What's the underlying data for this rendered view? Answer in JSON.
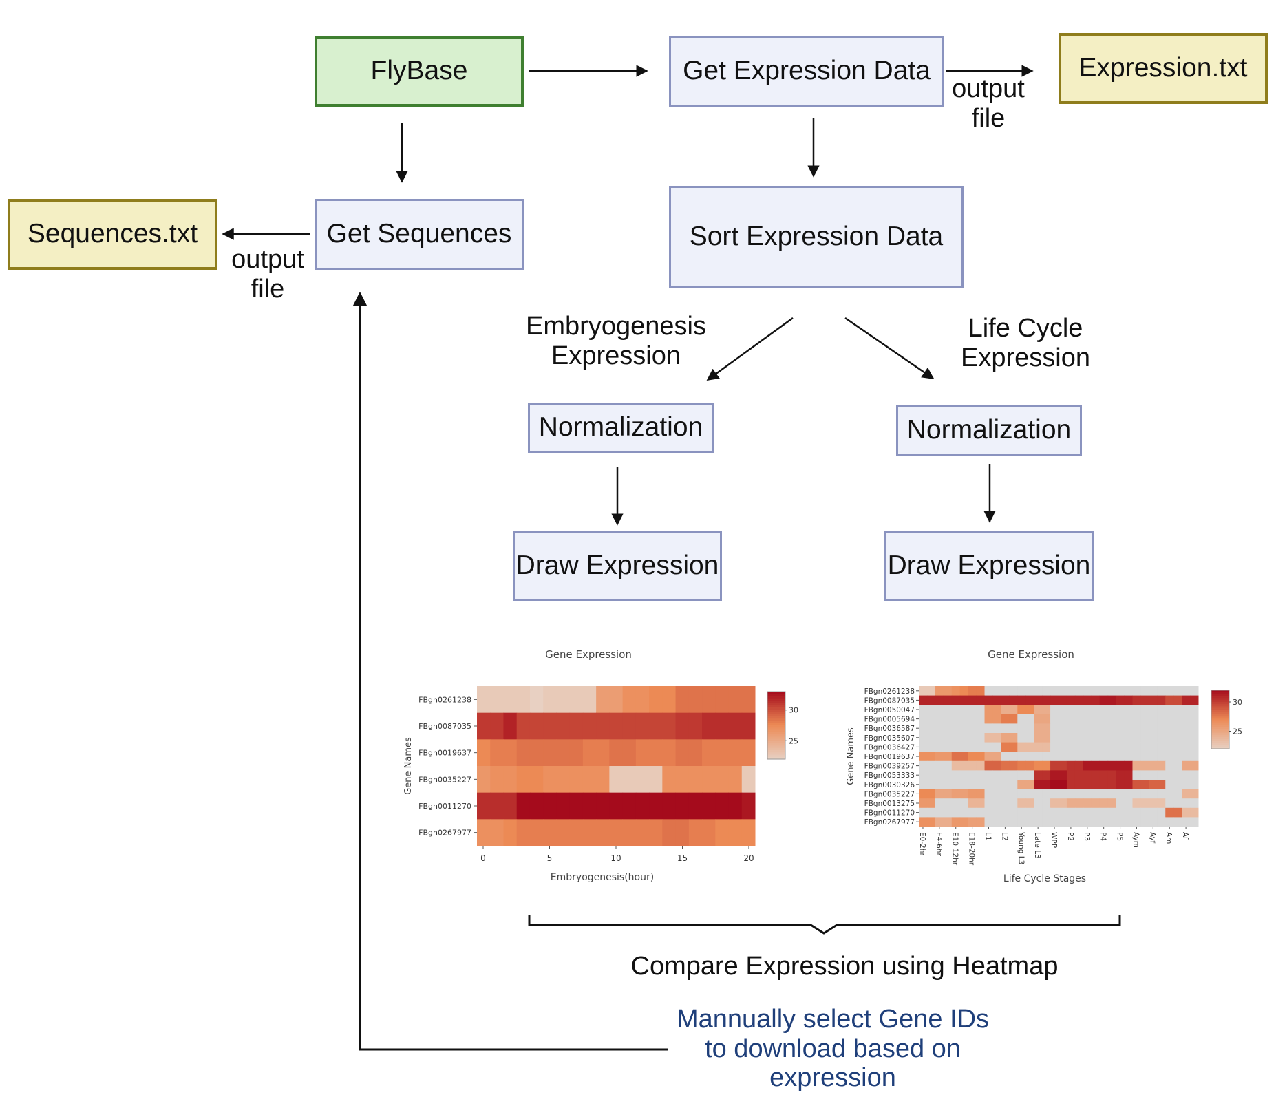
{
  "nodes": {
    "flybase": "FlyBase",
    "get_expression": "Get Expression Data",
    "expression_file": "Expression.txt",
    "get_sequences": "Get Sequences",
    "sequences_file": "Sequences.txt",
    "sort_expression": "Sort Expression Data",
    "normalization_left": "Normalization",
    "normalization_right": "Normalization",
    "draw_left": "Draw Expression",
    "draw_right": "Draw Expression"
  },
  "labels": {
    "output_file_top": "output\nfile",
    "output_file_left": "output\nfile",
    "embryo_branch": "Embryogenesis\nExpression",
    "lifecycle_branch": "Life Cycle\nExpression",
    "compare": "Compare Expression using Heatmap",
    "manual_select": "Mannually select Gene IDs\nto download based on\nexpression"
  },
  "colors": {
    "box_blue_fill": "#eef1fa",
    "box_blue_border": "#8a93bf",
    "box_green_fill": "#d8f0cf",
    "box_green_border": "#3f7f30",
    "box_yellow_fill": "#f4efc4",
    "box_yellow_border": "#8f7d1c",
    "feedback_text": "#1f3f7a",
    "heat_low": "#e8d0c2",
    "heat_mid": "#ec8a55",
    "heat_high": "#a50b1c",
    "heat_empty": "#d9d9d9"
  },
  "chart_data": [
    {
      "type": "heatmap",
      "title": "Gene Expression",
      "xlabel": "Embryogenesis(hour)",
      "ylabel": "Gene Names",
      "rows": [
        "FBgn0261238",
        "FBgn0087035",
        "FBgn0019637",
        "FBgn0035227",
        "FBgn0011270",
        "FBgn0267977"
      ],
      "x_ticks": [
        0,
        5,
        10,
        15,
        20
      ],
      "x_range": [
        0,
        21
      ],
      "colorbar_ticks": [
        25,
        30
      ],
      "vmin": 22,
      "vmax": 33,
      "values": [
        [
          22.5,
          22.5,
          22.5,
          22.5,
          22,
          22.5,
          22.5,
          22.5,
          22.5,
          26,
          26,
          27,
          27,
          27.5,
          27.5,
          28.5,
          28.5,
          28.5,
          28.5,
          28.5,
          28.5
        ],
        [
          31,
          31,
          32,
          30.5,
          30.5,
          30.5,
          30.5,
          30.5,
          30.5,
          30.5,
          30.5,
          30.5,
          30.5,
          30.5,
          30.5,
          31,
          31,
          31.5,
          31.5,
          31.5,
          31.5
        ],
        [
          27.5,
          28,
          28,
          28.5,
          28.5,
          28.5,
          28.5,
          28.5,
          28,
          28,
          28.5,
          28.5,
          28,
          28,
          28,
          28.5,
          28.5,
          28,
          28,
          28,
          28
        ],
        [
          26.5,
          27,
          27,
          27.5,
          27.5,
          27,
          27,
          27,
          27,
          27,
          22.5,
          22.5,
          22.5,
          22.5,
          27,
          27,
          27,
          27,
          27,
          27,
          22.5
        ],
        [
          31.5,
          31.5,
          31.5,
          33,
          33,
          33,
          33,
          33,
          33,
          33,
          33,
          33,
          33,
          33,
          33,
          33,
          33,
          33,
          33,
          33,
          32.5
        ],
        [
          27,
          27,
          27.5,
          28,
          28,
          28,
          28,
          28,
          28,
          28,
          28,
          28,
          28,
          28,
          28.5,
          28.5,
          28,
          28,
          27.5,
          27.5,
          27.5
        ]
      ]
    },
    {
      "type": "heatmap",
      "title": "Gene Expression",
      "xlabel": "Life Cycle Stages",
      "ylabel": "Gene Names",
      "rows": [
        "FBgn0261238",
        "FBgn0087035",
        "FBgn0050047",
        "FBgn0005694",
        "FBgn0036587",
        "FBgn0035607",
        "FBgn0036427",
        "FBgn0019637",
        "FBgn0039257",
        "FBgn0053333",
        "FBgn0030326",
        "FBgn0035227",
        "FBgn0013275",
        "FBgn0011270",
        "FBgn0267977"
      ],
      "categories": [
        "E0-2hr",
        "",
        "E4-6hr",
        "",
        "E10-12hr",
        "",
        "E18-20hr",
        "",
        "L1",
        "",
        "L2",
        "",
        "Young L3",
        "",
        "Late L3",
        "",
        "WPP",
        "",
        "P2",
        "",
        "P3",
        "",
        "P4",
        "",
        "P5",
        "",
        "Aym",
        "",
        "Ayf",
        "",
        "Am",
        "",
        "Af",
        ""
      ],
      "colorbar_ticks": [
        25,
        30
      ],
      "vmin": 22,
      "vmax": 32,
      "values": [
        [
          22.5,
          22.5,
          26,
          26,
          26.5,
          27,
          27.5,
          27.5,
          null,
          null,
          null,
          null,
          null,
          null,
          null,
          null,
          null,
          null,
          null,
          null,
          null,
          null,
          null,
          null,
          null,
          null,
          null,
          null,
          null,
          null,
          null,
          null,
          null,
          null
        ],
        [
          31,
          31,
          31,
          31,
          31,
          31,
          31,
          31,
          31,
          31,
          31,
          31,
          31,
          31,
          31,
          31,
          31,
          31,
          31,
          31,
          31,
          31,
          31.5,
          31.5,
          31,
          31,
          30.5,
          30.5,
          30.5,
          30.5,
          29.5,
          29.5,
          31,
          31
        ],
        [
          null,
          null,
          null,
          null,
          null,
          null,
          null,
          null,
          26,
          26,
          24.5,
          24.5,
          27,
          27,
          24.5,
          24.5,
          null,
          null,
          null,
          null,
          null,
          null,
          null,
          null,
          null,
          null,
          null,
          null,
          null,
          null,
          null,
          null,
          null,
          null
        ],
        [
          null,
          null,
          null,
          null,
          null,
          null,
          null,
          null,
          26,
          26,
          27.5,
          27.5,
          null,
          null,
          25,
          25,
          null,
          null,
          null,
          null,
          null,
          null,
          null,
          null,
          null,
          null,
          null,
          null,
          null,
          null,
          null,
          null,
          null,
          null
        ],
        [
          null,
          null,
          null,
          null,
          null,
          null,
          null,
          null,
          null,
          null,
          null,
          null,
          null,
          null,
          24.5,
          24.5,
          null,
          null,
          null,
          null,
          null,
          null,
          null,
          null,
          null,
          null,
          null,
          null,
          null,
          null,
          null,
          null,
          null,
          null
        ],
        [
          null,
          null,
          null,
          null,
          null,
          null,
          null,
          null,
          23.5,
          23.5,
          25,
          25,
          null,
          null,
          24.5,
          24.5,
          null,
          null,
          null,
          null,
          null,
          null,
          null,
          null,
          null,
          null,
          null,
          null,
          null,
          null,
          null,
          null,
          null,
          null
        ],
        [
          null,
          null,
          null,
          null,
          null,
          null,
          null,
          null,
          null,
          null,
          27.5,
          27.5,
          23.5,
          23.5,
          23.5,
          23.5,
          null,
          null,
          null,
          null,
          null,
          null,
          null,
          null,
          null,
          null,
          null,
          null,
          null,
          null,
          null,
          null,
          null,
          null
        ],
        [
          26.5,
          26.5,
          26,
          26,
          28,
          28,
          27,
          27,
          25,
          25,
          null,
          null,
          null,
          null,
          null,
          null,
          null,
          null,
          null,
          null,
          null,
          null,
          null,
          null,
          null,
          null,
          null,
          null,
          null,
          null,
          null,
          null,
          null,
          null
        ],
        [
          null,
          null,
          null,
          null,
          23.5,
          23.5,
          23.5,
          23.5,
          28.5,
          28.5,
          28,
          28,
          27.5,
          27.5,
          27,
          27,
          30,
          30,
          30.5,
          30.5,
          31.5,
          31.5,
          31.5,
          31.5,
          31.5,
          31.5,
          24.5,
          24.5,
          24.5,
          24.5,
          null,
          null,
          25,
          25
        ],
        [
          null,
          null,
          null,
          null,
          null,
          null,
          null,
          null,
          null,
          null,
          null,
          null,
          null,
          null,
          30.5,
          30.5,
          31.5,
          31.5,
          30.5,
          30.5,
          30.5,
          30.5,
          30.5,
          30.5,
          31,
          31,
          null,
          null,
          null,
          null,
          null,
          null,
          null,
          null
        ],
        [
          null,
          null,
          null,
          null,
          null,
          null,
          null,
          null,
          null,
          null,
          null,
          null,
          25,
          25,
          31.5,
          31.5,
          32,
          32,
          30.5,
          30.5,
          30.5,
          30.5,
          30.5,
          30.5,
          31,
          31,
          29,
          29,
          28.5,
          28.5,
          null,
          null,
          null,
          null
        ],
        [
          27,
          27,
          25,
          25,
          25.5,
          25.5,
          26,
          26,
          null,
          null,
          null,
          null,
          null,
          null,
          null,
          null,
          null,
          null,
          null,
          null,
          null,
          null,
          null,
          null,
          null,
          null,
          null,
          null,
          null,
          null,
          null,
          null,
          24,
          24
        ],
        [
          26,
          26,
          null,
          null,
          null,
          null,
          24,
          24,
          null,
          null,
          null,
          null,
          23.5,
          23.5,
          null,
          null,
          23.5,
          23.5,
          24.5,
          24.5,
          24.5,
          24.5,
          24.5,
          24.5,
          null,
          null,
          23,
          23,
          23,
          23,
          null,
          null,
          null,
          null
        ],
        [
          null,
          null,
          null,
          null,
          null,
          null,
          null,
          null,
          null,
          null,
          null,
          null,
          null,
          null,
          null,
          null,
          null,
          null,
          null,
          null,
          null,
          null,
          null,
          null,
          null,
          null,
          null,
          null,
          null,
          null,
          28,
          28,
          23.5,
          23.5
        ],
        [
          26.5,
          26.5,
          24.5,
          24.5,
          26,
          26,
          25.5,
          25.5,
          null,
          null,
          null,
          null,
          null,
          null,
          null,
          null,
          null,
          null,
          null,
          null,
          null,
          null,
          null,
          null,
          null,
          null,
          null,
          null,
          null,
          null,
          null,
          null,
          null,
          null
        ]
      ]
    }
  ]
}
